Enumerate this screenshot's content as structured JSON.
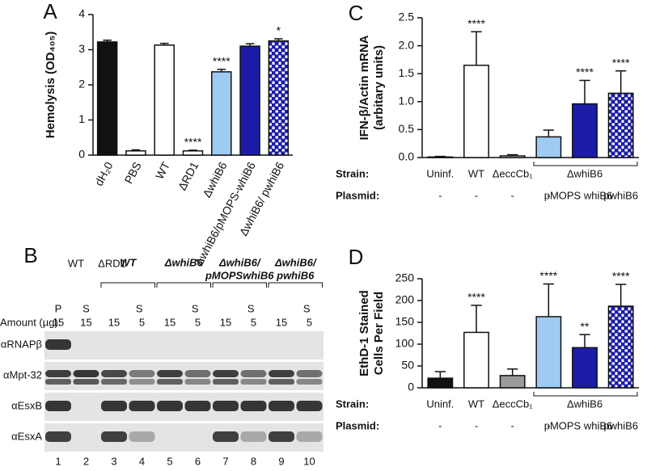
{
  "chart_data": [
    {
      "panel": "A",
      "type": "bar",
      "y_label": [
        "Hemolysis (OD₄₀₅)"
      ],
      "categories": [
        "dH₂0",
        "PBS",
        "WT",
        "ΔRD1",
        "ΔwhiB6",
        "ΔwhiB6/pMOPS-whiB6",
        "ΔwhiB6/ pwhiB6"
      ],
      "values": [
        3.22,
        0.12,
        3.13,
        0.12,
        2.37,
        3.1,
        3.25
      ],
      "errors": [
        0.05,
        0.03,
        0.05,
        0.02,
        0.07,
        0.07,
        0.06
      ],
      "significance": [
        null,
        null,
        null,
        "****",
        "****",
        null,
        "*"
      ],
      "colors": [
        "#111111",
        "#ffffff",
        "#ffffff",
        "#ffffff",
        "#9fcbf2",
        "#1c1ca8",
        "#1c1ca8"
      ],
      "checkered": [
        false,
        false,
        false,
        false,
        false,
        false,
        true
      ],
      "ylim": [
        0,
        4
      ],
      "yticks": [
        0,
        1,
        2,
        3,
        4
      ]
    },
    {
      "panel": "C",
      "type": "bar",
      "y_label": [
        "IFN-β/Actin mRNA",
        "(arbitary units)"
      ],
      "strain_label": "Strain:",
      "plasmid_label": "Plasmid:",
      "categories": [
        "Uninf.",
        "WT",
        "ΔeccCb₁",
        null,
        "ΔwhiB6",
        null
      ],
      "plasmids": [
        "-",
        "-",
        "-",
        "-",
        "pMOPS whiB6",
        "pwhiB6"
      ],
      "values": [
        0.01,
        1.65,
        0.03,
        0.37,
        0.96,
        1.15
      ],
      "errors": [
        0.01,
        0.6,
        0.02,
        0.12,
        0.42,
        0.4
      ],
      "significance": [
        null,
        "****",
        null,
        null,
        "****",
        "****"
      ],
      "colors": [
        "#ffffff",
        "#ffffff",
        "#ffffff",
        "#9fcbf2",
        "#1c1ca8",
        "#1c1ca8"
      ],
      "checkered": [
        false,
        false,
        false,
        false,
        false,
        true
      ],
      "ylim": [
        0,
        2.5
      ],
      "yticks": [
        {
          "value": 0,
          "label": "0.0"
        },
        0.5,
        {
          "value": 1,
          "label": "1.0"
        },
        1.5,
        {
          "value": 2,
          "label": "2.0"
        },
        2.5
      ]
    },
    {
      "panel": "D",
      "type": "bar",
      "y_label": [
        "EthD-1 Stained",
        "Cells Per Field"
      ],
      "strain_label": "Strain:",
      "plasmid_label": "Plasmid:",
      "categories": [
        "Uninf.",
        "WT",
        "ΔeccCb₁",
        null,
        "ΔwhiB6",
        null
      ],
      "plasmids": [
        "-",
        "-",
        "-",
        "-",
        "pMOPS whiB6",
        "pwhiB6"
      ],
      "values": [
        22,
        127,
        28,
        163,
        92,
        187
      ],
      "errors": [
        15,
        62,
        15,
        75,
        30,
        50
      ],
      "significance": [
        null,
        "****",
        null,
        "****",
        "**",
        "****"
      ],
      "colors": [
        "#111111",
        "#ffffff",
        "#9a9a9a",
        "#9fcbf2",
        "#1c1ca8",
        "#1c1ca8"
      ],
      "checkered": [
        false,
        false,
        false,
        false,
        false,
        true
      ],
      "ylim": [
        0,
        250
      ],
      "yticks": [
        0,
        50,
        100,
        150,
        200,
        250
      ]
    }
  ],
  "blot": {
    "panel": "B",
    "top_labels": [
      "WT",
      "ΔRD1"
    ],
    "groups": [
      [
        "WT"
      ],
      [
        "ΔwhiB6"
      ],
      [
        "ΔwhiB6/",
        "pMOPSwhiB6"
      ],
      [
        "ΔwhiB6/",
        "pwhiB6"
      ]
    ],
    "fractions": [
      "P",
      "S",
      "S",
      "S",
      "S",
      "S"
    ],
    "amount_label": "Amount (µg):",
    "amounts": [
      15,
      15,
      15,
      5,
      15,
      5,
      15,
      5,
      15,
      5
    ],
    "antibodies": [
      "αRNAPβ",
      "αMpt-32",
      "αEsxB",
      "αEsxA"
    ],
    "lanes": [
      1,
      2,
      3,
      4,
      5,
      6,
      7,
      8,
      9,
      10
    ]
  }
}
